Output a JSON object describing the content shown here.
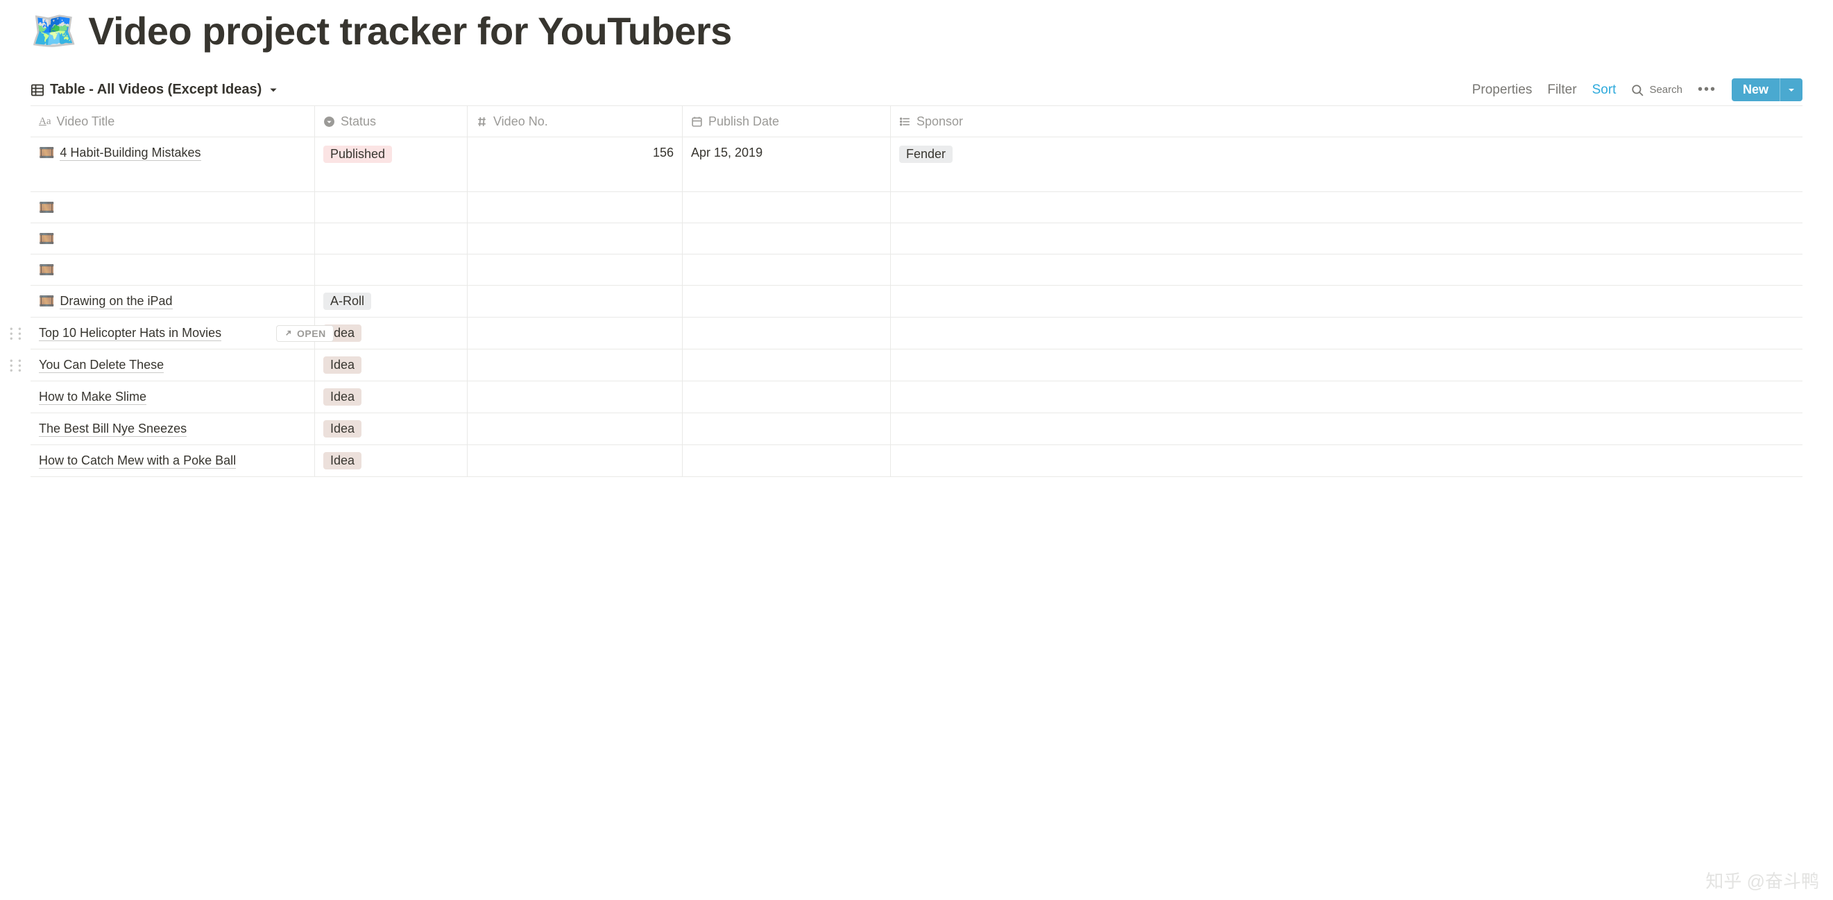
{
  "page": {
    "emoji": "🗺️",
    "title": "Video project tracker for YouTubers"
  },
  "toolbar": {
    "view_name": "Table - All Videos (Except Ideas)",
    "properties_label": "Properties",
    "filter_label": "Filter",
    "sort_label": "Sort",
    "search_label": "Search",
    "new_label": "New"
  },
  "columns": [
    {
      "key": "title",
      "label": "Video Title",
      "icon": "text"
    },
    {
      "key": "status",
      "label": "Status",
      "icon": "select"
    },
    {
      "key": "no",
      "label": "Video No.",
      "icon": "number"
    },
    {
      "key": "date",
      "label": "Publish Date",
      "icon": "date"
    },
    {
      "key": "sponsor",
      "label": "Sponsor",
      "icon": "multi"
    }
  ],
  "status_styles": {
    "Published": {
      "bg": "#fbe4e4",
      "fg": "#37352f"
    },
    "A-Roll": {
      "bg": "#ebeced",
      "fg": "#37352f"
    },
    "Idea": {
      "bg": "#ece0db",
      "fg": "#37352f"
    }
  },
  "sponsor_styles": {
    "Fender": {
      "bg": "#ebeced",
      "fg": "#37352f"
    }
  },
  "rows": [
    {
      "emoji": "🎞️",
      "title": "4 Habit-Building Mistakes",
      "status": "Published",
      "no": "156",
      "date": "Apr 15, 2019",
      "sponsor": "Fender",
      "tall": true
    },
    {
      "emoji": "🎞️",
      "title": "",
      "status": "",
      "no": "",
      "date": "",
      "sponsor": ""
    },
    {
      "emoji": "🎞️",
      "title": "",
      "status": "",
      "no": "",
      "date": "",
      "sponsor": ""
    },
    {
      "emoji": "🎞️",
      "title": "",
      "status": "",
      "no": "",
      "date": "",
      "sponsor": ""
    },
    {
      "emoji": "🎞️",
      "title": "Drawing on the iPad",
      "status": "A-Roll",
      "no": "",
      "date": "",
      "sponsor": ""
    },
    {
      "emoji": "",
      "title": "Top 10 Helicopter Hats in Movies",
      "status": "Idea",
      "no": "",
      "date": "",
      "sponsor": "",
      "hovered": true,
      "drag": true
    },
    {
      "emoji": "",
      "title": "You Can Delete These",
      "status": "Idea",
      "no": "",
      "date": "",
      "sponsor": "",
      "drag": true
    },
    {
      "emoji": "",
      "title": "How to Make Slime",
      "status": "Idea",
      "no": "",
      "date": "",
      "sponsor": ""
    },
    {
      "emoji": "",
      "title": "The Best Bill Nye Sneezes",
      "status": "Idea",
      "no": "",
      "date": "",
      "sponsor": ""
    },
    {
      "emoji": "",
      "title": "How to Catch Mew with a Poke Ball",
      "status": "Idea",
      "no": "",
      "date": "",
      "sponsor": ""
    }
  ],
  "open_label": "OPEN",
  "watermark": "知乎 @奋斗鸭"
}
